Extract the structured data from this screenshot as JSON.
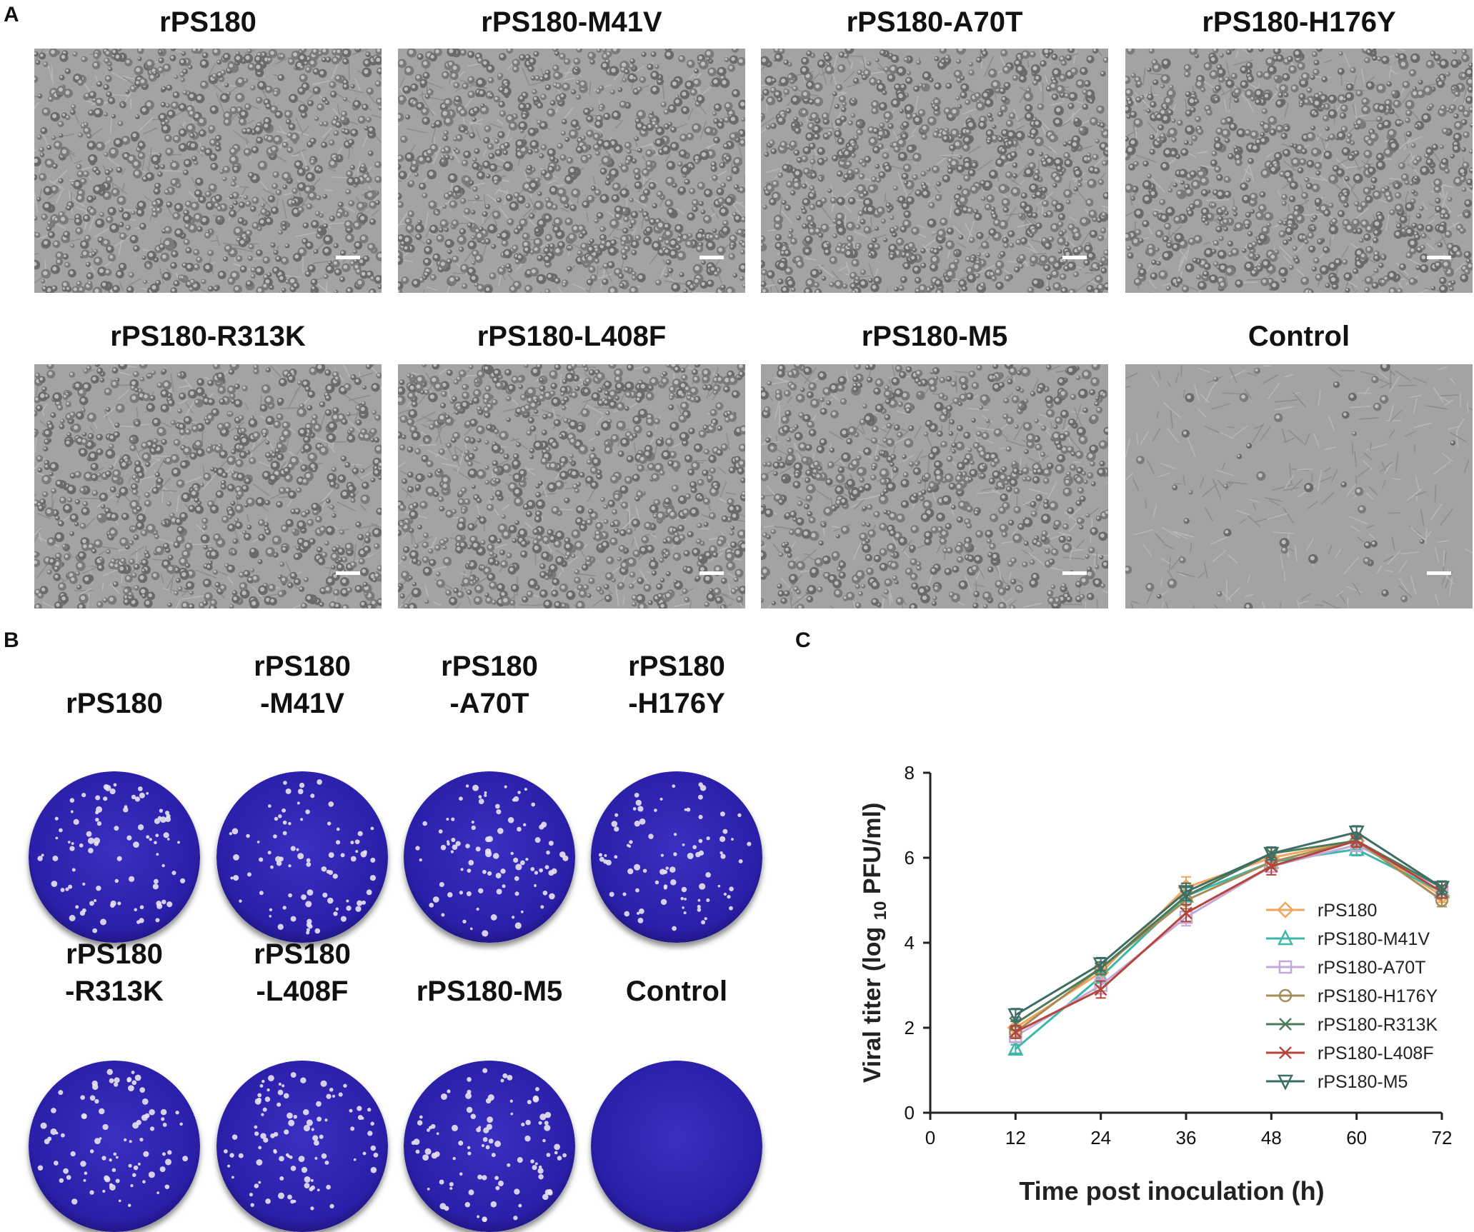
{
  "figure": {
    "panel_a": {
      "letter": "A",
      "cells": [
        {
          "title": "rPS180",
          "density": 0.9,
          "seed": 11
        },
        {
          "title": "rPS180-M41V",
          "density": 0.95,
          "seed": 23
        },
        {
          "title": "rPS180-A70T",
          "density": 1.0,
          "seed": 37
        },
        {
          "title": "rPS180-H176Y",
          "density": 0.92,
          "seed": 41
        },
        {
          "title": "rPS180-R313K",
          "density": 0.9,
          "seed": 53
        },
        {
          "title": "rPS180-L408F",
          "density": 0.95,
          "seed": 67
        },
        {
          "title": "rPS180-M5",
          "density": 0.8,
          "seed": 71
        },
        {
          "title": "Control",
          "density": 0.05,
          "seed": 83
        }
      ]
    },
    "panel_b": {
      "letter": "B",
      "plates": [
        {
          "line1": "rPS180",
          "line2": "",
          "plaques": 90,
          "seed": 5
        },
        {
          "line1": "rPS180",
          "line2": "-M41V",
          "plaques": 85,
          "seed": 9
        },
        {
          "line1": "rPS180",
          "line2": "-A70T",
          "plaques": 90,
          "seed": 13
        },
        {
          "line1": "rPS180",
          "line2": "-H176Y",
          "plaques": 85,
          "seed": 17
        },
        {
          "line1": "rPS180",
          "line2": "-R313K",
          "plaques": 85,
          "seed": 21
        },
        {
          "line1": "rPS180",
          "line2": "-L408F",
          "plaques": 95,
          "seed": 25
        },
        {
          "line1": "rPS180-M5",
          "line2": "",
          "plaques": 95,
          "seed": 29
        },
        {
          "line1": "Control",
          "line2": "",
          "plaques": 0,
          "seed": 33
        }
      ]
    },
    "panel_c": {
      "letter": "C",
      "chart_data": {
        "type": "line",
        "xlabel": "Time post inoculation (h)",
        "ylabel_pre": "Viral titer (log",
        "ylabel_sub": "10",
        "ylabel_post": "PFU/ml)",
        "xlim": [
          0,
          72
        ],
        "ylim": [
          0,
          8
        ],
        "xticks": [
          0,
          12,
          24,
          36,
          48,
          60,
          72
        ],
        "yticks": [
          0,
          2,
          4,
          6,
          8
        ],
        "legend_position": "right",
        "x": [
          12,
          24,
          36,
          48,
          60,
          72
        ],
        "series": [
          {
            "name": "rPS180",
            "color": "#f2a65a",
            "marker": "diamond",
            "values": [
              2.0,
              3.3,
              5.3,
              6.0,
              6.4,
              5.1
            ],
            "errors": [
              0.15,
              0.2,
              0.25,
              0.15,
              0.15,
              0.15
            ]
          },
          {
            "name": "rPS180-M41V",
            "color": "#3cb8a8",
            "marker": "triangle-up",
            "values": [
              1.5,
              3.2,
              5.1,
              5.9,
              6.2,
              5.2
            ],
            "errors": [
              0.1,
              0.15,
              0.2,
              0.15,
              0.15,
              0.15
            ]
          },
          {
            "name": "rPS180-A70T",
            "color": "#c4a8d8",
            "marker": "square",
            "values": [
              1.8,
              3.0,
              4.6,
              5.8,
              6.3,
              5.3
            ],
            "errors": [
              0.15,
              0.2,
              0.2,
              0.2,
              0.15,
              0.15
            ]
          },
          {
            "name": "rPS180-H176Y",
            "color": "#a58c5a",
            "marker": "circle",
            "values": [
              1.9,
              3.4,
              5.0,
              5.9,
              6.4,
              5.0
            ],
            "errors": [
              0.15,
              0.15,
              0.2,
              0.15,
              0.15,
              0.15
            ]
          },
          {
            "name": "rPS180-R313K",
            "color": "#4e7a5c",
            "marker": "x",
            "values": [
              2.1,
              3.4,
              5.1,
              6.1,
              6.4,
              5.3
            ],
            "errors": [
              0.15,
              0.15,
              0.2,
              0.15,
              0.15,
              0.15
            ]
          },
          {
            "name": "rPS180-L408F",
            "color": "#b5453c",
            "marker": "x",
            "values": [
              1.9,
              2.9,
              4.7,
              5.8,
              6.4,
              5.2
            ],
            "errors": [
              0.15,
              0.2,
              0.2,
              0.2,
              0.15,
              0.15
            ]
          },
          {
            "name": "rPS180-M5",
            "color": "#3d6e66",
            "marker": "triangle-down",
            "values": [
              2.3,
              3.5,
              5.2,
              6.1,
              6.6,
              5.3
            ],
            "errors": [
              0.15,
              0.15,
              0.2,
              0.15,
              0.15,
              0.15
            ]
          }
        ]
      }
    }
  }
}
